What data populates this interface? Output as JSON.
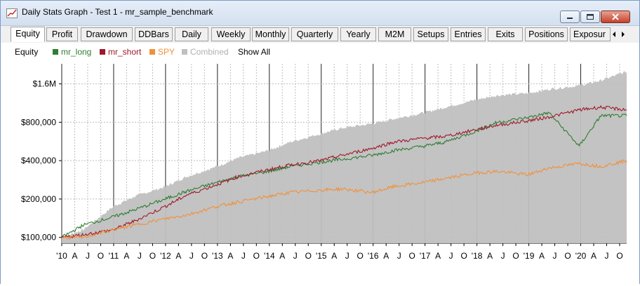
{
  "window": {
    "title": "Daily Stats Graph - Test 1 - mr_sample_benchmark"
  },
  "tabs": [
    "Equity",
    "Profit",
    "Drawdown",
    "DDBars",
    "Daily",
    "Weekly",
    "Monthly",
    "Quarterly",
    "Yearly",
    "M2M",
    "Setups",
    "Entries",
    "Exits",
    "Positions",
    "Exposur"
  ],
  "active_tab": "Equity",
  "legend": {
    "label": "Equity",
    "items": [
      {
        "name": "mr_long",
        "color": "#2e7d32"
      },
      {
        "name": "mr_short",
        "color": "#a0182a"
      },
      {
        "name": "SPY",
        "color": "#f0913a"
      },
      {
        "name": "Combined",
        "color": "#c0c0c0"
      }
    ],
    "show_all": "Show All"
  },
  "chart_data": {
    "type": "area",
    "y_scale": "log",
    "ylim": [
      90000,
      2300000
    ],
    "y_ticks": [
      {
        "value": 100000,
        "label": "$100,000"
      },
      {
        "value": 200000,
        "label": "$200,000"
      },
      {
        "value": 400000,
        "label": "$400,000"
      },
      {
        "value": 800000,
        "label": "$800,000"
      },
      {
        "value": 1600000,
        "label": "$1.6M"
      }
    ],
    "x_tick_labels": [
      "'10",
      "A",
      "J",
      "O",
      "'11",
      "A",
      "J",
      "O",
      "'12",
      "A",
      "J",
      "O",
      "'13",
      "A",
      "J",
      "O",
      "'14",
      "A",
      "J",
      "O",
      "'15",
      "A",
      "J",
      "O",
      "'16",
      "A",
      "J",
      "O",
      "'17",
      "A",
      "J",
      "O",
      "'18",
      "A",
      "J",
      "O",
      "'19",
      "A",
      "J",
      "O",
      "'20",
      "A",
      "J",
      "O"
    ],
    "year_ticks": [
      "2010",
      "2011",
      "2012",
      "2013",
      "2014",
      "2015",
      "2016",
      "2017",
      "2018",
      "2019",
      "2020"
    ],
    "x_range": [
      "2010-01",
      "2020-12"
    ],
    "grid": true,
    "series": [
      {
        "name": "Combined",
        "color": "#c0c0c0",
        "points": [
          [
            "2010-01",
            100000
          ],
          [
            "2010-06",
            115000
          ],
          [
            "2011-01",
            175000
          ],
          [
            "2011-06",
            210000
          ],
          [
            "2012-01",
            250000
          ],
          [
            "2012-06",
            300000
          ],
          [
            "2013-01",
            360000
          ],
          [
            "2013-06",
            420000
          ],
          [
            "2014-01",
            480000
          ],
          [
            "2014-06",
            560000
          ],
          [
            "2015-01",
            650000
          ],
          [
            "2015-06",
            720000
          ],
          [
            "2016-01",
            780000
          ],
          [
            "2016-06",
            850000
          ],
          [
            "2017-01",
            950000
          ],
          [
            "2017-06",
            1050000
          ],
          [
            "2018-01",
            1200000
          ],
          [
            "2018-06",
            1300000
          ],
          [
            "2019-01",
            1350000
          ],
          [
            "2019-06",
            1450000
          ],
          [
            "2020-01",
            1550000
          ],
          [
            "2020-06",
            1700000
          ],
          [
            "2020-12",
            2000000
          ]
        ]
      },
      {
        "name": "mr_long",
        "color": "#2e7d32",
        "points": [
          [
            "2010-01",
            100000
          ],
          [
            "2010-06",
            125000
          ],
          [
            "2011-01",
            145000
          ],
          [
            "2011-06",
            165000
          ],
          [
            "2012-01",
            200000
          ],
          [
            "2012-06",
            230000
          ],
          [
            "2013-01",
            270000
          ],
          [
            "2013-06",
            300000
          ],
          [
            "2014-01",
            330000
          ],
          [
            "2014-06",
            360000
          ],
          [
            "2015-01",
            390000
          ],
          [
            "2015-06",
            410000
          ],
          [
            "2016-01",
            440000
          ],
          [
            "2016-06",
            480000
          ],
          [
            "2017-01",
            520000
          ],
          [
            "2017-06",
            560000
          ],
          [
            "2018-01",
            680000
          ],
          [
            "2018-06",
            800000
          ],
          [
            "2019-01",
            870000
          ],
          [
            "2019-06",
            950000
          ],
          [
            "2020-01",
            520000
          ],
          [
            "2020-06",
            900000
          ],
          [
            "2020-12",
            900000
          ]
        ]
      },
      {
        "name": "mr_short",
        "color": "#a0182a",
        "points": [
          [
            "2010-01",
            100000
          ],
          [
            "2010-06",
            105000
          ],
          [
            "2011-01",
            115000
          ],
          [
            "2011-06",
            135000
          ],
          [
            "2012-01",
            175000
          ],
          [
            "2012-06",
            215000
          ],
          [
            "2013-01",
            260000
          ],
          [
            "2013-06",
            300000
          ],
          [
            "2014-01",
            340000
          ],
          [
            "2014-06",
            370000
          ],
          [
            "2015-01",
            400000
          ],
          [
            "2015-06",
            440000
          ],
          [
            "2016-01",
            500000
          ],
          [
            "2016-06",
            560000
          ],
          [
            "2017-01",
            600000
          ],
          [
            "2017-06",
            620000
          ],
          [
            "2018-01",
            700000
          ],
          [
            "2018-06",
            760000
          ],
          [
            "2019-01",
            820000
          ],
          [
            "2019-06",
            880000
          ],
          [
            "2020-01",
            1000000
          ],
          [
            "2020-06",
            1050000
          ],
          [
            "2020-12",
            1000000
          ]
        ]
      },
      {
        "name": "SPY",
        "color": "#f0913a",
        "points": [
          [
            "2010-01",
            100000
          ],
          [
            "2010-06",
            100000
          ],
          [
            "2011-01",
            115000
          ],
          [
            "2011-06",
            125000
          ],
          [
            "2012-01",
            140000
          ],
          [
            "2012-06",
            150000
          ],
          [
            "2013-01",
            175000
          ],
          [
            "2013-06",
            190000
          ],
          [
            "2014-01",
            210000
          ],
          [
            "2014-06",
            225000
          ],
          [
            "2015-01",
            235000
          ],
          [
            "2015-06",
            240000
          ],
          [
            "2016-01",
            225000
          ],
          [
            "2016-06",
            250000
          ],
          [
            "2017-01",
            270000
          ],
          [
            "2017-06",
            290000
          ],
          [
            "2018-01",
            320000
          ],
          [
            "2018-06",
            330000
          ],
          [
            "2019-01",
            310000
          ],
          [
            "2019-06",
            350000
          ],
          [
            "2020-01",
            380000
          ],
          [
            "2020-06",
            360000
          ],
          [
            "2020-12",
            400000
          ]
        ]
      }
    ]
  }
}
